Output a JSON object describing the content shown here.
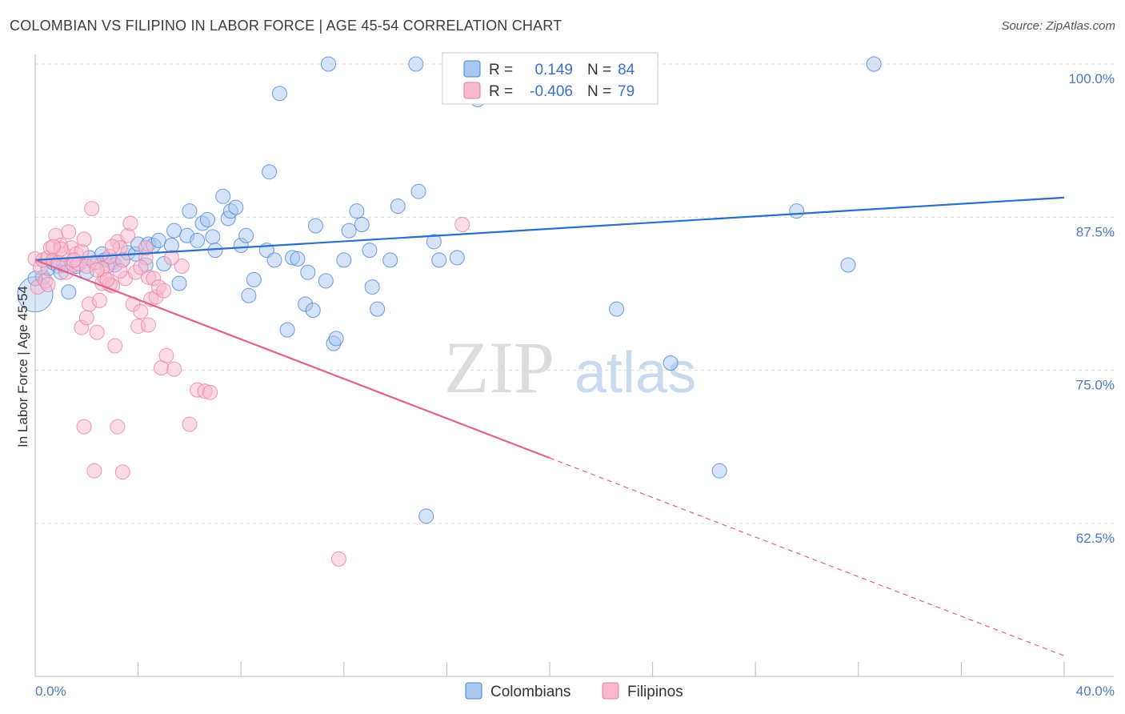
{
  "title": "COLOMBIAN VS FILIPINO IN LABOR FORCE | AGE 45-54 CORRELATION CHART",
  "source": "Source: ZipAtlas.com",
  "watermark": {
    "zip": "ZIP",
    "atlas": "atlas"
  },
  "colors": {
    "colombians_fill": "#a9c8f0",
    "colombians_stroke": "#4a86d8",
    "colombians_line": "#2a6fcc",
    "filipinos_fill": "#f7b9cd",
    "filipinos_stroke": "#e87fa3",
    "filipinos_line": "#e0608f",
    "grid": "#dddddd",
    "axis_label": "#4a78c2"
  },
  "legend": {
    "r_label": "R =",
    "n_label": "N =",
    "rows": [
      {
        "series": "Colombians",
        "r": "0.149",
        "n": "84"
      },
      {
        "series": "Filipinos",
        "r": "-0.406",
        "n": "79"
      }
    ]
  },
  "chart_data": {
    "type": "scatter",
    "xlabel": "",
    "ylabel": "In Labor Force | Age 45-54",
    "xlim": [
      0,
      40
    ],
    "ylim": [
      50,
      101
    ],
    "x_tick_labels": [
      "0.0%",
      "40.0%"
    ],
    "y_ticks": [
      62.5,
      75.0,
      87.5,
      100.0
    ],
    "y_tick_labels": [
      "62.5%",
      "75.0%",
      "87.5%",
      "100.0%"
    ],
    "grid": true,
    "legend_position": "top-center",
    "series": [
      {
        "name": "Colombians",
        "trend": {
          "x1": 0,
          "y1": 84.0,
          "x2": 40,
          "y2": 89.1,
          "solid_until": 40
        },
        "points": [
          [
            0.0,
            81.2
          ],
          [
            0.3,
            82.6
          ],
          [
            0.5,
            83.3
          ],
          [
            0.7,
            83.8
          ],
          [
            0.9,
            83.5
          ],
          [
            1.0,
            83.0
          ],
          [
            1.1,
            83.6
          ],
          [
            1.3,
            81.4
          ],
          [
            1.6,
            83.5
          ],
          [
            2.0,
            83.0
          ],
          [
            2.1,
            84.2
          ],
          [
            2.4,
            83.8
          ],
          [
            2.6,
            84.5
          ],
          [
            2.7,
            84.0
          ],
          [
            3.0,
            83.8
          ],
          [
            3.1,
            83.6
          ],
          [
            3.4,
            84.0
          ],
          [
            3.6,
            84.6
          ],
          [
            3.9,
            84.5
          ],
          [
            4.0,
            85.3
          ],
          [
            4.3,
            83.6
          ],
          [
            4.4,
            85.3
          ],
          [
            4.6,
            85.2
          ],
          [
            4.8,
            85.6
          ],
          [
            5.0,
            83.7
          ],
          [
            5.3,
            85.2
          ],
          [
            5.4,
            86.4
          ],
          [
            5.6,
            82.1
          ],
          [
            5.9,
            86.0
          ],
          [
            6.0,
            88.0
          ],
          [
            6.3,
            85.6
          ],
          [
            6.5,
            87.0
          ],
          [
            6.7,
            87.3
          ],
          [
            6.9,
            85.9
          ],
          [
            7.0,
            84.8
          ],
          [
            7.3,
            89.2
          ],
          [
            7.5,
            87.4
          ],
          [
            7.6,
            88.0
          ],
          [
            7.8,
            88.3
          ],
          [
            8.0,
            85.2
          ],
          [
            8.2,
            86.0
          ],
          [
            8.3,
            81.1
          ],
          [
            8.5,
            82.4
          ],
          [
            9.0,
            84.8
          ],
          [
            9.1,
            91.2
          ],
          [
            9.3,
            84.0
          ],
          [
            9.5,
            97.6
          ],
          [
            9.8,
            78.3
          ],
          [
            10.0,
            84.2
          ],
          [
            10.2,
            84.1
          ],
          [
            10.5,
            80.4
          ],
          [
            10.6,
            83.0
          ],
          [
            10.8,
            79.9
          ],
          [
            10.9,
            86.8
          ],
          [
            11.3,
            82.3
          ],
          [
            11.4,
            100.0
          ],
          [
            11.6,
            77.2
          ],
          [
            11.7,
            77.6
          ],
          [
            12.0,
            84.0
          ],
          [
            12.2,
            86.4
          ],
          [
            12.5,
            88.0
          ],
          [
            12.7,
            86.9
          ],
          [
            13.0,
            84.8
          ],
          [
            13.1,
            81.8
          ],
          [
            13.3,
            80.0
          ],
          [
            13.8,
            84.0
          ],
          [
            14.1,
            88.4
          ],
          [
            14.8,
            100.0
          ],
          [
            14.9,
            89.6
          ],
          [
            15.2,
            63.1
          ],
          [
            15.5,
            85.5
          ],
          [
            15.7,
            84.0
          ],
          [
            16.2,
            100.0
          ],
          [
            16.4,
            84.2
          ],
          [
            17.2,
            97.1
          ],
          [
            18.2,
            100.0
          ],
          [
            19.8,
            100.0
          ],
          [
            22.6,
            80.0
          ],
          [
            24.7,
            75.6
          ],
          [
            26.6,
            66.8
          ],
          [
            29.6,
            88.0
          ],
          [
            31.6,
            83.6
          ],
          [
            32.6,
            100.0
          ],
          [
            0.0,
            82.5
          ]
        ],
        "sizes_note": ""
      },
      {
        "name": "Filipinos",
        "trend": {
          "x1": 0,
          "y1": 84.0,
          "x2": 40,
          "y2": 51.7,
          "solid_until": 20
        },
        "points": [
          [
            0.0,
            84.1
          ],
          [
            0.1,
            81.8
          ],
          [
            0.2,
            83.4
          ],
          [
            0.3,
            84.0
          ],
          [
            0.4,
            82.3
          ],
          [
            0.5,
            84.2
          ],
          [
            0.6,
            85.0
          ],
          [
            0.7,
            84.0
          ],
          [
            0.8,
            86.0
          ],
          [
            0.9,
            83.8
          ],
          [
            1.0,
            85.2
          ],
          [
            1.1,
            84.5
          ],
          [
            1.2,
            83.0
          ],
          [
            1.3,
            86.3
          ],
          [
            1.4,
            85.0
          ],
          [
            1.5,
            83.6
          ],
          [
            1.6,
            84.5
          ],
          [
            1.7,
            83.7
          ],
          [
            1.8,
            84.7
          ],
          [
            1.9,
            85.7
          ],
          [
            2.0,
            83.5
          ],
          [
            2.1,
            80.4
          ],
          [
            2.2,
            88.2
          ],
          [
            2.3,
            83.8
          ],
          [
            2.4,
            78.1
          ],
          [
            2.5,
            80.7
          ],
          [
            2.6,
            82.1
          ],
          [
            2.7,
            82.6
          ],
          [
            2.8,
            83.5
          ],
          [
            2.9,
            82.0
          ],
          [
            3.0,
            81.9
          ],
          [
            3.1,
            77.0
          ],
          [
            3.2,
            85.5
          ],
          [
            3.3,
            85.0
          ],
          [
            3.4,
            84.0
          ],
          [
            3.5,
            82.5
          ],
          [
            3.6,
            86.0
          ],
          [
            3.7,
            87.0
          ],
          [
            3.8,
            80.4
          ],
          [
            3.9,
            83.0
          ],
          [
            4.0,
            78.6
          ],
          [
            4.1,
            79.8
          ],
          [
            4.3,
            84.2
          ],
          [
            4.4,
            82.6
          ],
          [
            4.5,
            80.8
          ],
          [
            4.6,
            82.5
          ],
          [
            4.7,
            81.0
          ],
          [
            4.8,
            81.8
          ],
          [
            4.9,
            75.2
          ],
          [
            5.0,
            81.5
          ],
          [
            5.1,
            76.2
          ],
          [
            5.4,
            75.1
          ],
          [
            5.7,
            83.5
          ],
          [
            6.0,
            70.6
          ],
          [
            6.3,
            73.4
          ],
          [
            6.6,
            73.3
          ],
          [
            6.8,
            73.2
          ],
          [
            2.3,
            66.8
          ],
          [
            3.4,
            66.7
          ],
          [
            3.2,
            70.4
          ],
          [
            1.9,
            70.4
          ],
          [
            1.8,
            78.5
          ],
          [
            1.5,
            84.0
          ],
          [
            1.0,
            84.9
          ],
          [
            0.7,
            85.1
          ],
          [
            2.6,
            83.3
          ],
          [
            2.9,
            84.3
          ],
          [
            3.3,
            83.1
          ],
          [
            4.3,
            85.0
          ],
          [
            4.1,
            83.4
          ],
          [
            2.0,
            79.3
          ],
          [
            2.8,
            82.4
          ],
          [
            2.4,
            83.2
          ],
          [
            3.0,
            85.1
          ],
          [
            4.4,
            78.7
          ],
          [
            5.3,
            84.2
          ],
          [
            11.8,
            59.6
          ],
          [
            16.6,
            86.9
          ],
          [
            0.5,
            82.0
          ]
        ]
      }
    ]
  }
}
